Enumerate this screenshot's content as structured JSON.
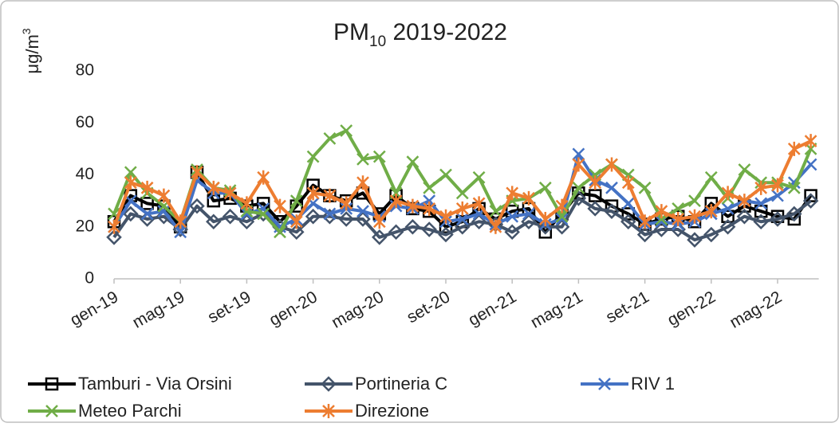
{
  "chart_data": {
    "type": "line",
    "title": [
      "PM",
      "10",
      " 2019-2022"
    ],
    "y_label": [
      "μg/m",
      "3"
    ],
    "categories": [
      "gen-19",
      null,
      null,
      null,
      "mag-19",
      null,
      null,
      null,
      "set-19",
      null,
      null,
      null,
      "gen-20",
      null,
      null,
      null,
      "mag-20",
      null,
      null,
      null,
      "set-20",
      null,
      null,
      null,
      "gen-21",
      null,
      null,
      null,
      "mag-21",
      null,
      null,
      null,
      "set-21",
      null,
      null,
      null,
      "gen-22",
      null,
      null,
      null,
      "mag-22",
      null,
      null
    ],
    "ylim": [
      0,
      80
    ],
    "yticks": [
      0,
      20,
      40,
      60,
      80
    ],
    "grid": false,
    "series": [
      {
        "name": "Tamburi - Via Orsini",
        "color": "#000000",
        "marker": "square",
        "values": [
          22,
          32,
          29,
          28,
          20,
          41,
          30,
          31,
          28,
          29,
          22,
          28,
          36,
          32,
          30,
          33,
          25,
          32,
          27,
          26,
          20,
          22,
          27,
          23,
          26,
          27,
          18,
          25,
          33,
          32,
          28,
          25,
          21,
          23,
          24,
          22,
          29,
          24,
          28,
          26,
          24,
          23,
          32
        ]
      },
      {
        "name": "Portineria C",
        "color": "#44546a",
        "marker": "diamond",
        "values": [
          16,
          25,
          23,
          24,
          19,
          28,
          22,
          24,
          22,
          25,
          20,
          18,
          24,
          24,
          23,
          23,
          16,
          18,
          20,
          19,
          17,
          20,
          22,
          21,
          18,
          22,
          20,
          20,
          31,
          27,
          26,
          22,
          17,
          19,
          19,
          15,
          17,
          20,
          24,
          22,
          23,
          25,
          30
        ]
      },
      {
        "name": "RIV 1",
        "color": "#4472c4",
        "marker": "x",
        "values": [
          20,
          30,
          25,
          26,
          18,
          38,
          33,
          33,
          25,
          27,
          20,
          23,
          29,
          25,
          27,
          26,
          24,
          28,
          27,
          30,
          22,
          23,
          25,
          21,
          24,
          25,
          21,
          23,
          48,
          38,
          35,
          29,
          21,
          22,
          21,
          22,
          25,
          27,
          30,
          29,
          32,
          37,
          44
        ]
      },
      {
        "name": "Meteo Parchi",
        "color": "#70ad47",
        "marker": "x",
        "values": [
          25,
          41,
          33,
          28,
          22,
          42,
          35,
          34,
          26,
          25,
          18,
          30,
          47,
          54,
          57,
          46,
          47,
          33,
          45,
          35,
          40,
          33,
          39,
          26,
          30,
          31,
          35,
          24,
          35,
          40,
          44,
          40,
          35,
          23,
          27,
          30,
          39,
          31,
          42,
          37,
          37,
          35,
          50
        ]
      },
      {
        "name": "Direzione",
        "color": "#ed7d31",
        "marker": "star",
        "values": [
          20,
          37,
          35,
          32,
          22,
          41,
          35,
          33,
          29,
          39,
          28,
          22,
          33,
          32,
          29,
          37,
          22,
          30,
          28,
          27,
          24,
          27,
          29,
          20,
          33,
          31,
          23,
          28,
          44,
          37,
          44,
          37,
          22,
          26,
          23,
          24,
          26,
          33,
          30,
          35,
          36,
          50,
          53
        ]
      }
    ]
  }
}
